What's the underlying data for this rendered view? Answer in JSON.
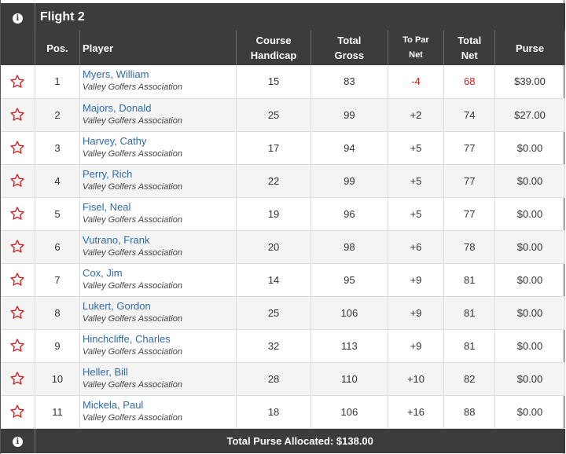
{
  "flight": {
    "title": "Flight 2",
    "info_icon": "info-icon"
  },
  "columns": {
    "pos": "Pos.",
    "player": "Player",
    "course_handicap_1": "Course",
    "course_handicap_2": "Handicap",
    "total_gross_1": "Total",
    "total_gross_2": "Gross",
    "to_par_1": "To Par",
    "to_par_2": "Net",
    "total_net_1": "Total",
    "total_net_2": "Net",
    "purse": "Purse"
  },
  "rows": [
    {
      "pos": "1",
      "name": "Myers, William",
      "assoc": "Valley Golfers Association",
      "hcp": "15",
      "gross": "83",
      "topar": "-4",
      "net": "68",
      "purse": "$39.00",
      "neg": true
    },
    {
      "pos": "2",
      "name": "Majors, Donald",
      "assoc": "Valley Golfers Association",
      "hcp": "25",
      "gross": "99",
      "topar": "+2",
      "net": "74",
      "purse": "$27.00",
      "neg": false
    },
    {
      "pos": "3",
      "name": "Harvey, Cathy",
      "assoc": "Valley Golfers Association",
      "hcp": "17",
      "gross": "94",
      "topar": "+5",
      "net": "77",
      "purse": "$0.00",
      "neg": false
    },
    {
      "pos": "4",
      "name": "Perry, Rich",
      "assoc": "Valley Golfers Association",
      "hcp": "22",
      "gross": "99",
      "topar": "+5",
      "net": "77",
      "purse": "$0.00",
      "neg": false
    },
    {
      "pos": "5",
      "name": "Fisel, Neal",
      "assoc": "Valley Golfers Association",
      "hcp": "19",
      "gross": "96",
      "topar": "+5",
      "net": "77",
      "purse": "$0.00",
      "neg": false
    },
    {
      "pos": "6",
      "name": "Vutrano, Frank",
      "assoc": "Valley Golfers Association",
      "hcp": "20",
      "gross": "98",
      "topar": "+6",
      "net": "78",
      "purse": "$0.00",
      "neg": false
    },
    {
      "pos": "7",
      "name": "Cox, Jim",
      "assoc": "Valley Golfers Association",
      "hcp": "14",
      "gross": "95",
      "topar": "+9",
      "net": "81",
      "purse": "$0.00",
      "neg": false
    },
    {
      "pos": "8",
      "name": "Lukert, Gordon",
      "assoc": "Valley Golfers Association",
      "hcp": "25",
      "gross": "106",
      "topar": "+9",
      "net": "81",
      "purse": "$0.00",
      "neg": false
    },
    {
      "pos": "9",
      "name": "Hinchcliffe, Charles",
      "assoc": "Valley Golfers Association",
      "hcp": "32",
      "gross": "113",
      "topar": "+9",
      "net": "81",
      "purse": "$0.00",
      "neg": false
    },
    {
      "pos": "10",
      "name": "Heller, Bill",
      "assoc": "Valley Golfers Association",
      "hcp": "28",
      "gross": "110",
      "topar": "+10",
      "net": "82",
      "purse": "$0.00",
      "neg": false
    },
    {
      "pos": "11",
      "name": "Mickela, Paul",
      "assoc": "Valley Golfers Association",
      "hcp": "18",
      "gross": "106",
      "topar": "+16",
      "net": "88",
      "purse": "$0.00",
      "neg": false
    }
  ],
  "footer": {
    "total_purse": "Total Purse Allocated: $138.00"
  },
  "colors": {
    "header_bg": "#3c3c3c",
    "link": "#2f6aa8",
    "star": "#d21f1f",
    "net": "#7b2a9a",
    "negative": "#d21f1f"
  }
}
